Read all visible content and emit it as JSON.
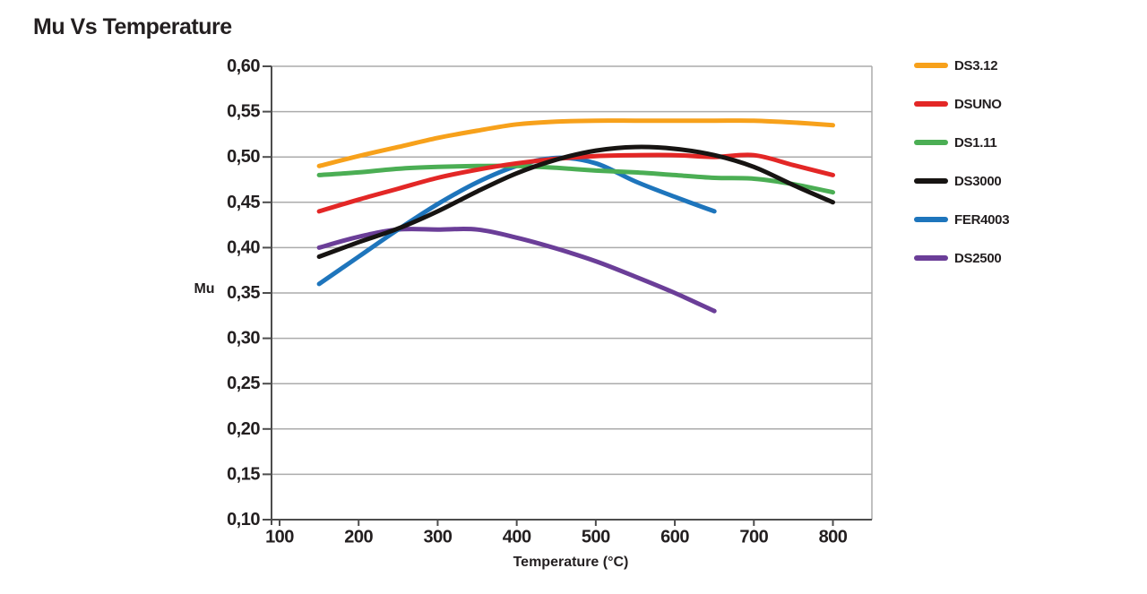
{
  "chart_data": {
    "type": "line",
    "title": "Mu Vs Temperature",
    "xlabel": "Temperature (°C)",
    "ylabel": "Mu",
    "xlim": [
      100,
      800
    ],
    "ylim": [
      0.1,
      0.6
    ],
    "x_ticks": [
      100,
      200,
      300,
      400,
      500,
      600,
      700,
      800
    ],
    "x_tick_labels": [
      "100",
      "200",
      "300",
      "400",
      "500",
      "600",
      "700",
      "800"
    ],
    "y_ticks": [
      0.1,
      0.15,
      0.2,
      0.25,
      0.3,
      0.35,
      0.4,
      0.45,
      0.5,
      0.55,
      0.6
    ],
    "y_tick_labels": [
      "0,10",
      "0,15",
      "0,20",
      "0,25",
      "0,30",
      "0,35",
      "0,40",
      "0,45",
      "0,50",
      "0,55",
      "0,60"
    ],
    "grid": "horizontal",
    "legend_position": "right",
    "colors": {
      "grid": "#ABABAB",
      "axis": "#4D4D4D",
      "text": "#231F20"
    },
    "series": [
      {
        "name": "DS3.12",
        "color": "#F7A11B",
        "x": [
          150,
          200,
          250,
          300,
          350,
          400,
          450,
          500,
          550,
          600,
          650,
          700,
          750,
          800
        ],
        "values": [
          0.49,
          0.501,
          0.511,
          0.521,
          0.529,
          0.536,
          0.539,
          0.54,
          0.54,
          0.54,
          0.54,
          0.54,
          0.538,
          0.535
        ]
      },
      {
        "name": "DSUNO",
        "color": "#E32726",
        "x": [
          150,
          200,
          250,
          300,
          350,
          400,
          450,
          500,
          550,
          600,
          650,
          700,
          750,
          800
        ],
        "values": [
          0.44,
          0.453,
          0.465,
          0.477,
          0.486,
          0.493,
          0.498,
          0.501,
          0.502,
          0.502,
          0.5,
          0.502,
          0.491,
          0.48
        ]
      },
      {
        "name": "DS1.11",
        "color": "#4BAE54",
        "x": [
          150,
          200,
          250,
          300,
          350,
          400,
          450,
          500,
          550,
          600,
          650,
          700,
          750,
          800
        ],
        "values": [
          0.48,
          0.483,
          0.487,
          0.489,
          0.49,
          0.49,
          0.488,
          0.485,
          0.483,
          0.48,
          0.477,
          0.476,
          0.47,
          0.461
        ]
      },
      {
        "name": "DS3000",
        "color": "#171412",
        "x": [
          150,
          200,
          250,
          300,
          350,
          400,
          450,
          500,
          550,
          600,
          650,
          700,
          750,
          800
        ],
        "values": [
          0.39,
          0.406,
          0.421,
          0.44,
          0.462,
          0.482,
          0.497,
          0.507,
          0.511,
          0.509,
          0.502,
          0.489,
          0.469,
          0.45
        ]
      },
      {
        "name": "FER4003",
        "color": "#1E75BC",
        "x": [
          150,
          200,
          250,
          300,
          350,
          400,
          450,
          500,
          550,
          600,
          650
        ],
        "values": [
          0.36,
          0.39,
          0.42,
          0.448,
          0.472,
          0.49,
          0.499,
          0.493,
          0.473,
          0.456,
          0.44
        ]
      },
      {
        "name": "DS2500",
        "color": "#6B3E98",
        "x": [
          150,
          200,
          250,
          300,
          350,
          400,
          450,
          500,
          550,
          600,
          650
        ],
        "values": [
          0.4,
          0.412,
          0.42,
          0.42,
          0.42,
          0.411,
          0.399,
          0.385,
          0.368,
          0.35,
          0.33
        ]
      }
    ],
    "draw_order": [
      5,
      4,
      2,
      1,
      3,
      0
    ]
  }
}
